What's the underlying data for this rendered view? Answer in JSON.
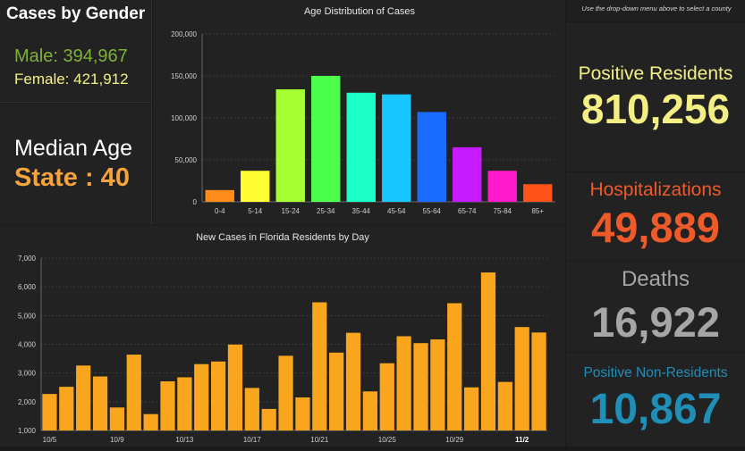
{
  "gender": {
    "title": "Cases by Gender",
    "male": "Male: 394,967",
    "female": "Female: 421,912"
  },
  "median": {
    "line1": "Median Age",
    "line2": "State : 40"
  },
  "hint": "Use the drop-down menu above to select a county",
  "stats": {
    "positive_label": "Positive Residents",
    "positive_value": "810,256",
    "hosp_label": "Hospitalizations",
    "hosp_value": "49,889",
    "deaths_label": "Deaths",
    "deaths_value": "16,922",
    "nonres_label": "Positive Non-Residents",
    "nonres_value": "10,867"
  },
  "chart_data": [
    {
      "type": "bar",
      "title": "Age Distribution of Cases",
      "categories": [
        "0-4",
        "5-14",
        "15-24",
        "25-34",
        "35-44",
        "45-54",
        "55-64",
        "65-74",
        "75-84",
        "85+"
      ],
      "values": [
        14000,
        37000,
        134000,
        150000,
        130000,
        128000,
        107000,
        65000,
        37000,
        21000
      ],
      "colors": [
        "#ff8c1a",
        "#ffff33",
        "#a6ff33",
        "#4dff4d",
        "#1affc6",
        "#1ac6ff",
        "#1a6bff",
        "#c61aff",
        "#ff1acb",
        "#ff531a"
      ],
      "ylim": [
        0,
        200000
      ],
      "yticks": [
        0,
        50000,
        100000,
        150000,
        200000
      ],
      "ytick_labels": [
        "0",
        "50,000",
        "100,000",
        "150,000",
        "200,000"
      ],
      "xlabel": "",
      "ylabel": ""
    },
    {
      "type": "bar",
      "title": "New Cases in Florida Residents by Day",
      "categories": [
        "10/5",
        "10/6",
        "10/7",
        "10/8",
        "10/9",
        "10/10",
        "10/11",
        "10/12",
        "10/13",
        "10/14",
        "10/15",
        "10/16",
        "10/17",
        "10/18",
        "10/19",
        "10/20",
        "10/21",
        "10/22",
        "10/23",
        "10/24",
        "10/25",
        "10/26",
        "10/27",
        "10/28",
        "10/29",
        "10/30",
        "10/31",
        "11/1",
        "11/2",
        "11/3"
      ],
      "values": [
        2270,
        2520,
        3260,
        2880,
        1800,
        3640,
        1570,
        2710,
        2850,
        3310,
        3400,
        3990,
        2480,
        1750,
        3600,
        2150,
        5460,
        3710,
        4400,
        2360,
        3340,
        4280,
        4040,
        4170,
        5430,
        2500,
        6500,
        2690,
        4600,
        4410
      ],
      "color": "#f9a51e",
      "tick_labels": [
        "10/5",
        "10/9",
        "10/13",
        "10/17",
        "10/21",
        "10/25",
        "10/29",
        "11/2"
      ],
      "tick_categories": [
        "10/5",
        "10/9",
        "10/13",
        "10/17",
        "10/21",
        "10/25",
        "10/29",
        "11/2"
      ],
      "bold_tick": "11/2",
      "ylim": [
        1000,
        7000
      ],
      "yticks": [
        1000,
        2000,
        3000,
        4000,
        5000,
        6000,
        7000
      ],
      "ytick_labels": [
        "1,000",
        "2,000",
        "3,000",
        "4,000",
        "5,000",
        "6,000",
        "7,000"
      ],
      "xlabel": "",
      "ylabel": ""
    }
  ]
}
